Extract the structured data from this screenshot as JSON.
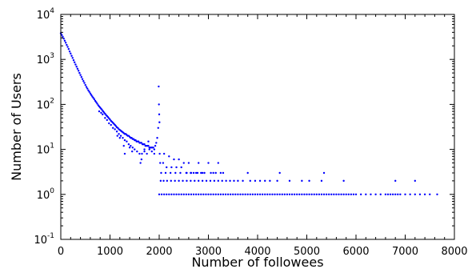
{
  "chart_data": {
    "type": "scatter",
    "xlabel": "Number of followees",
    "ylabel": "Number of Users",
    "xlim": [
      0,
      8000
    ],
    "ylim": [
      0.1,
      10000
    ],
    "yscale": "log",
    "grid": false,
    "color": "#0000ff",
    "xticks": [
      {
        "value": 0,
        "label": "0"
      },
      {
        "value": 1000,
        "label": "1000"
      },
      {
        "value": 2000,
        "label": "2000"
      },
      {
        "value": 3000,
        "label": "3000"
      },
      {
        "value": 4000,
        "label": "4000"
      },
      {
        "value": 5000,
        "label": "5000"
      },
      {
        "value": 6000,
        "label": "6000"
      },
      {
        "value": 7000,
        "label": "7000"
      },
      {
        "value": 8000,
        "label": "8000"
      }
    ],
    "yticks": [
      {
        "value": 0.1,
        "base": "10",
        "exp": "-1"
      },
      {
        "value": 1,
        "base": "10",
        "exp": "0"
      },
      {
        "value": 10,
        "base": "10",
        "exp": "1"
      },
      {
        "value": 100,
        "base": "10",
        "exp": "2"
      },
      {
        "value": 1000,
        "base": "10",
        "exp": "3"
      },
      {
        "value": 10000,
        "base": "10",
        "exp": "4"
      }
    ],
    "points": [
      [
        0,
        3800
      ],
      [
        20,
        3500
      ],
      [
        40,
        3200
      ],
      [
        60,
        2900
      ],
      [
        80,
        2600
      ],
      [
        100,
        2350
      ],
      [
        120,
        2100
      ],
      [
        140,
        1900
      ],
      [
        160,
        1700
      ],
      [
        180,
        1500
      ],
      [
        200,
        1350
      ],
      [
        220,
        1200
      ],
      [
        240,
        1080
      ],
      [
        260,
        960
      ],
      [
        280,
        860
      ],
      [
        300,
        770
      ],
      [
        320,
        690
      ],
      [
        340,
        620
      ],
      [
        360,
        560
      ],
      [
        380,
        500
      ],
      [
        400,
        450
      ],
      [
        420,
        405
      ],
      [
        440,
        365
      ],
      [
        460,
        330
      ],
      [
        480,
        300
      ],
      [
        500,
        270
      ],
      [
        520,
        245
      ],
      [
        540,
        225
      ],
      [
        560,
        205
      ],
      [
        580,
        190
      ],
      [
        600,
        175
      ],
      [
        620,
        162
      ],
      [
        640,
        150
      ],
      [
        660,
        140
      ],
      [
        680,
        130
      ],
      [
        700,
        120
      ],
      [
        720,
        112
      ],
      [
        740,
        104
      ],
      [
        760,
        96
      ],
      [
        780,
        90
      ],
      [
        800,
        85
      ],
      [
        820,
        80
      ],
      [
        840,
        75
      ],
      [
        860,
        70
      ],
      [
        880,
        66
      ],
      [
        900,
        62
      ],
      [
        920,
        58
      ],
      [
        940,
        55
      ],
      [
        960,
        52
      ],
      [
        980,
        49
      ],
      [
        1000,
        46
      ],
      [
        1020,
        43
      ],
      [
        1040,
        41
      ],
      [
        1060,
        39
      ],
      [
        1080,
        37
      ],
      [
        1100,
        35
      ],
      [
        1120,
        33
      ],
      [
        1140,
        31
      ],
      [
        1160,
        30
      ],
      [
        1180,
        28
      ],
      [
        1200,
        27
      ],
      [
        1220,
        26
      ],
      [
        1240,
        25
      ],
      [
        1260,
        24
      ],
      [
        1280,
        23
      ],
      [
        1300,
        22
      ],
      [
        1320,
        22
      ],
      [
        1340,
        21
      ],
      [
        1360,
        20
      ],
      [
        1380,
        20
      ],
      [
        1400,
        19
      ],
      [
        1420,
        18
      ],
      [
        1440,
        18
      ],
      [
        1460,
        17
      ],
      [
        1480,
        17
      ],
      [
        1500,
        16
      ],
      [
        1520,
        16
      ],
      [
        1540,
        15
      ],
      [
        1560,
        15
      ],
      [
        1580,
        15
      ],
      [
        1600,
        14
      ],
      [
        1620,
        14
      ],
      [
        1640,
        14
      ],
      [
        1660,
        13
      ],
      [
        1680,
        13
      ],
      [
        1700,
        13
      ],
      [
        1720,
        12
      ],
      [
        1740,
        12
      ],
      [
        1760,
        12
      ],
      [
        1780,
        12
      ],
      [
        1800,
        11
      ],
      [
        1820,
        11
      ],
      [
        1840,
        11
      ],
      [
        1860,
        11
      ],
      [
        1880,
        11
      ],
      [
        1900,
        10
      ],
      [
        1920,
        12
      ],
      [
        1940,
        14
      ],
      [
        1960,
        18
      ],
      [
        1980,
        30
      ],
      [
        780,
        70
      ],
      [
        820,
        65
      ],
      [
        850,
        60
      ],
      [
        900,
        50
      ],
      [
        940,
        45
      ],
      [
        980,
        38
      ],
      [
        1020,
        35
      ],
      [
        1060,
        30
      ],
      [
        1100,
        28
      ],
      [
        1140,
        25
      ],
      [
        1180,
        22
      ],
      [
        1220,
        20
      ],
      [
        1260,
        18
      ],
      [
        1300,
        16
      ],
      [
        1340,
        15
      ],
      [
        1380,
        13
      ],
      [
        1420,
        12
      ],
      [
        1460,
        11
      ],
      [
        1500,
        10
      ],
      [
        1550,
        9
      ],
      [
        1600,
        8
      ],
      [
        1650,
        8
      ],
      [
        1700,
        9
      ],
      [
        1750,
        8
      ],
      [
        1800,
        10
      ],
      [
        1850,
        9
      ],
      [
        1900,
        8
      ],
      [
        1300,
        8
      ],
      [
        1280,
        12
      ],
      [
        1450,
        9
      ],
      [
        1620,
        5
      ],
      [
        1640,
        6
      ],
      [
        1700,
        10
      ],
      [
        1780,
        15
      ],
      [
        1150,
        20
      ],
      [
        1200,
        18
      ],
      [
        1400,
        11
      ],
      [
        1990,
        250
      ],
      [
        1995,
        100
      ],
      [
        2000,
        60
      ],
      [
        2005,
        40
      ],
      [
        2010,
        8
      ],
      [
        2100,
        8
      ],
      [
        2200,
        7
      ],
      [
        2300,
        6
      ],
      [
        2400,
        6
      ],
      [
        2500,
        5
      ],
      [
        2600,
        5
      ],
      [
        2800,
        5
      ],
      [
        3000,
        5
      ],
      [
        3200,
        5
      ],
      [
        2020,
        5
      ],
      [
        2080,
        5
      ],
      [
        2150,
        4
      ],
      [
        2250,
        4
      ],
      [
        2350,
        4
      ],
      [
        2450,
        4
      ],
      [
        2550,
        3
      ],
      [
        2650,
        3
      ],
      [
        2750,
        3
      ],
      [
        2850,
        3
      ],
      [
        3050,
        3
      ],
      [
        3250,
        3
      ],
      [
        3300,
        3
      ],
      [
        3800,
        3
      ],
      [
        4450,
        3
      ],
      [
        5350,
        3
      ],
      [
        2040,
        3
      ],
      [
        2130,
        3
      ],
      [
        2230,
        3
      ],
      [
        2330,
        3
      ],
      [
        2430,
        3
      ],
      [
        2560,
        3
      ],
      [
        2640,
        3
      ],
      [
        2700,
        3
      ],
      [
        2780,
        3
      ],
      [
        2880,
        3
      ],
      [
        2920,
        3
      ],
      [
        3100,
        3
      ],
      [
        3150,
        3
      ],
      [
        2030,
        2
      ],
      [
        2090,
        2
      ],
      [
        2160,
        2
      ],
      [
        2240,
        2
      ],
      [
        2320,
        2
      ],
      [
        2400,
        2
      ],
      [
        2480,
        2
      ],
      [
        2560,
        2
      ],
      [
        2640,
        2
      ],
      [
        2720,
        2
      ],
      [
        2800,
        2
      ],
      [
        2880,
        2
      ],
      [
        2960,
        2
      ],
      [
        3040,
        2
      ],
      [
        3120,
        2
      ],
      [
        3200,
        2
      ],
      [
        3280,
        2
      ],
      [
        3360,
        2
      ],
      [
        3440,
        2
      ],
      [
        3520,
        2
      ],
      [
        3600,
        2
      ],
      [
        3700,
        2
      ],
      [
        3850,
        2
      ],
      [
        3950,
        2
      ],
      [
        4050,
        2
      ],
      [
        4150,
        2
      ],
      [
        4250,
        2
      ],
      [
        4400,
        2
      ],
      [
        4650,
        2
      ],
      [
        4900,
        2
      ],
      [
        5050,
        2
      ],
      [
        5300,
        2
      ],
      [
        5750,
        2
      ],
      [
        6800,
        2
      ],
      [
        7200,
        2
      ],
      [
        2000,
        1
      ],
      [
        2050,
        1
      ],
      [
        2100,
        1
      ],
      [
        2150,
        1
      ],
      [
        2200,
        1
      ],
      [
        2250,
        1
      ],
      [
        2300,
        1
      ],
      [
        2350,
        1
      ],
      [
        2400,
        1
      ],
      [
        2450,
        1
      ],
      [
        2500,
        1
      ],
      [
        2550,
        1
      ],
      [
        2600,
        1
      ],
      [
        2650,
        1
      ],
      [
        2700,
        1
      ],
      [
        2750,
        1
      ],
      [
        2800,
        1
      ],
      [
        2850,
        1
      ],
      [
        2900,
        1
      ],
      [
        2950,
        1
      ],
      [
        3000,
        1
      ],
      [
        3050,
        1
      ],
      [
        3100,
        1
      ],
      [
        3150,
        1
      ],
      [
        3200,
        1
      ],
      [
        3250,
        1
      ],
      [
        3300,
        1
      ],
      [
        3350,
        1
      ],
      [
        3400,
        1
      ],
      [
        3450,
        1
      ],
      [
        3500,
        1
      ],
      [
        3550,
        1
      ],
      [
        3600,
        1
      ],
      [
        3650,
        1
      ],
      [
        3700,
        1
      ],
      [
        3750,
        1
      ],
      [
        3800,
        1
      ],
      [
        3850,
        1
      ],
      [
        3900,
        1
      ],
      [
        3950,
        1
      ],
      [
        4000,
        1
      ],
      [
        4050,
        1
      ],
      [
        4100,
        1
      ],
      [
        4150,
        1
      ],
      [
        4200,
        1
      ],
      [
        4250,
        1
      ],
      [
        4300,
        1
      ],
      [
        4350,
        1
      ],
      [
        4400,
        1
      ],
      [
        4450,
        1
      ],
      [
        4500,
        1
      ],
      [
        4550,
        1
      ],
      [
        4600,
        1
      ],
      [
        4650,
        1
      ],
      [
        4700,
        1
      ],
      [
        4750,
        1
      ],
      [
        4800,
        1
      ],
      [
        4850,
        1
      ],
      [
        4900,
        1
      ],
      [
        4950,
        1
      ],
      [
        5000,
        1
      ],
      [
        5050,
        1
      ],
      [
        5100,
        1
      ],
      [
        5150,
        1
      ],
      [
        5200,
        1
      ],
      [
        5250,
        1
      ],
      [
        5300,
        1
      ],
      [
        5350,
        1
      ],
      [
        5400,
        1
      ],
      [
        5450,
        1
      ],
      [
        5500,
        1
      ],
      [
        5550,
        1
      ],
      [
        5600,
        1
      ],
      [
        5650,
        1
      ],
      [
        5700,
        1
      ],
      [
        5750,
        1
      ],
      [
        5800,
        1
      ],
      [
        5850,
        1
      ],
      [
        5900,
        1
      ],
      [
        5950,
        1
      ],
      [
        6000,
        1
      ],
      [
        6100,
        1
      ],
      [
        6200,
        1
      ],
      [
        6300,
        1
      ],
      [
        6400,
        1
      ],
      [
        6500,
        1
      ],
      [
        6600,
        1
      ],
      [
        6650,
        1
      ],
      [
        6700,
        1
      ],
      [
        6750,
        1
      ],
      [
        6800,
        1
      ],
      [
        6850,
        1
      ],
      [
        6900,
        1
      ],
      [
        7000,
        1
      ],
      [
        7100,
        1
      ],
      [
        7200,
        1
      ],
      [
        7300,
        1
      ],
      [
        7400,
        1
      ],
      [
        7500,
        1
      ],
      [
        7650,
        1
      ]
    ]
  }
}
